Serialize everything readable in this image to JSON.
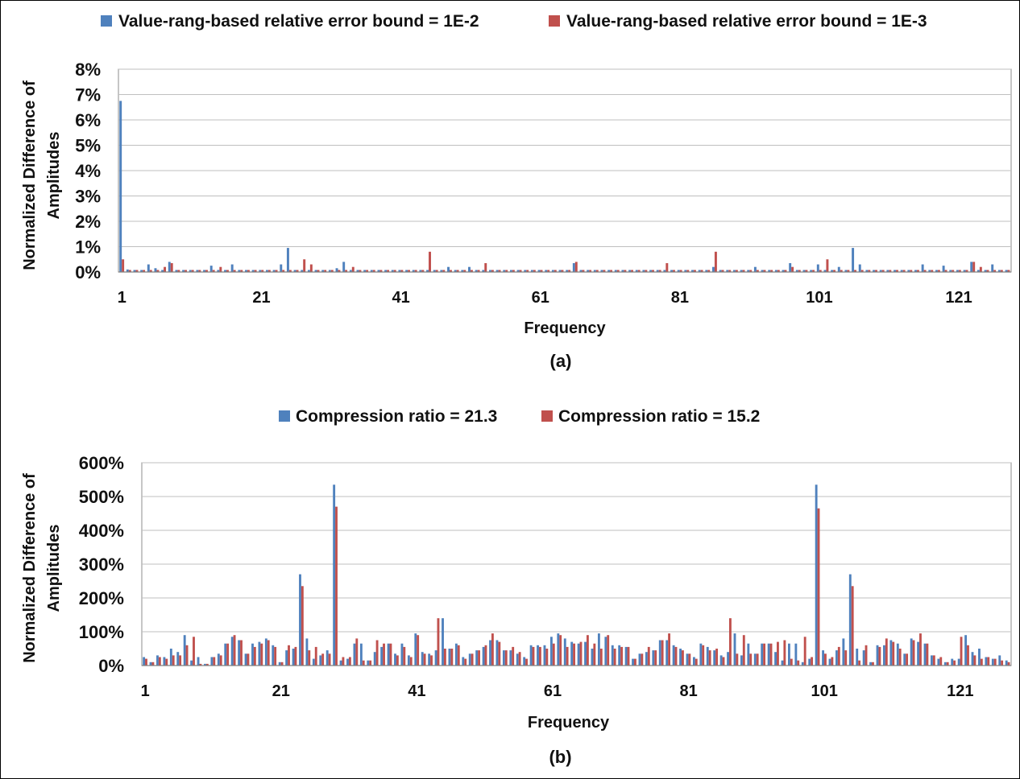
{
  "chart_data": [
    {
      "type": "bar",
      "caption": "(a)",
      "xlabel": "Frequency",
      "ylabel_line1": "Normalized Difference of",
      "ylabel_line2": "Amplitudes",
      "legend_position": "top",
      "grid": true,
      "ylim": [
        0,
        8
      ],
      "y_ticks": [
        {
          "value": 0,
          "label": "0%"
        },
        {
          "value": 1,
          "label": "1%"
        },
        {
          "value": 2,
          "label": "2%"
        },
        {
          "value": 3,
          "label": "3%"
        },
        {
          "value": 4,
          "label": "4%"
        },
        {
          "value": 5,
          "label": "5%"
        },
        {
          "value": 6,
          "label": "6%"
        },
        {
          "value": 7,
          "label": "7%"
        },
        {
          "value": 8,
          "label": "8%"
        }
      ],
      "x_ticks": [
        "1",
        "21",
        "41",
        "61",
        "81",
        "101",
        "121"
      ],
      "category_count": 128,
      "series": [
        {
          "name": "Value-rang-based relative error bound = 1E-2",
          "color": "#4F81BD",
          "sparse_values": {
            "1": 6.75,
            "2": 0.1,
            "5": 0.3,
            "6": 0.15,
            "8": 0.4,
            "14": 0.25,
            "17": 0.3,
            "24": 0.3,
            "25": 0.95,
            "32": 0.15,
            "33": 0.4,
            "48": 0.2,
            "51": 0.2,
            "66": 0.35,
            "86": 0.2,
            "92": 0.2,
            "97": 0.35,
            "101": 0.3,
            "104": 0.2,
            "106": 0.95,
            "107": 0.3,
            "116": 0.3,
            "119": 0.25,
            "123": 0.4,
            "126": 0.3
          },
          "default_value": 0.08
        },
        {
          "name": "Value-rang-based relative error bound = 1E-3",
          "color": "#C0504D",
          "sparse_values": {
            "1": 0.5,
            "7": 0.2,
            "8": 0.35,
            "15": 0.2,
            "27": 0.5,
            "28": 0.3,
            "34": 0.2,
            "45": 0.8,
            "53": 0.35,
            "66": 0.4,
            "79": 0.35,
            "86": 0.8,
            "97": 0.2,
            "102": 0.5,
            "123": 0.4,
            "124": 0.2
          },
          "default_value": 0.08
        }
      ]
    },
    {
      "type": "bar",
      "caption": "(b)",
      "xlabel": "Frequency",
      "ylabel_line1": "Normalized Difference of",
      "ylabel_line2": "Amplitudes",
      "legend_position": "top",
      "grid": true,
      "ylim": [
        0,
        600
      ],
      "y_ticks": [
        {
          "value": 0,
          "label": "0%"
        },
        {
          "value": 100,
          "label": "100%"
        },
        {
          "value": 200,
          "label": "200%"
        },
        {
          "value": 300,
          "label": "300%"
        },
        {
          "value": 400,
          "label": "400%"
        },
        {
          "value": 500,
          "label": "500%"
        },
        {
          "value": 600,
          "label": "600%"
        }
      ],
      "x_ticks": [
        "1",
        "21",
        "41",
        "61",
        "81",
        "101",
        "121"
      ],
      "category_count": 128,
      "series": [
        {
          "name": "Compression ratio = 21.3",
          "color": "#4F81BD",
          "values": [
            25,
            10,
            30,
            25,
            50,
            40,
            90,
            15,
            25,
            5,
            25,
            35,
            65,
            85,
            75,
            35,
            65,
            70,
            80,
            60,
            10,
            45,
            50,
            270,
            80,
            20,
            30,
            45,
            535,
            15,
            20,
            65,
            65,
            15,
            40,
            55,
            65,
            35,
            65,
            30,
            95,
            40,
            35,
            45,
            140,
            50,
            65,
            25,
            35,
            45,
            55,
            75,
            75,
            45,
            45,
            35,
            25,
            60,
            60,
            60,
            85,
            95,
            80,
            70,
            65,
            70,
            50,
            95,
            85,
            60,
            60,
            55,
            20,
            35,
            40,
            45,
            75,
            75,
            60,
            50,
            35,
            25,
            65,
            55,
            45,
            30,
            40,
            95,
            30,
            65,
            35,
            65,
            65,
            40,
            15,
            65,
            65,
            10,
            20,
            535,
            45,
            20,
            45,
            80,
            270,
            50,
            45,
            10,
            60,
            60,
            75,
            65,
            35,
            80,
            70,
            65,
            30,
            20,
            10,
            20,
            20,
            90,
            40,
            50,
            25,
            20,
            30,
            15
          ],
          "values_note": ""
        },
        {
          "name": "Compression ratio = 15.2",
          "color": "#C0504D",
          "values": [
            20,
            10,
            25,
            20,
            30,
            30,
            60,
            85,
            5,
            5,
            25,
            30,
            65,
            90,
            75,
            35,
            55,
            65,
            75,
            55,
            10,
            60,
            55,
            235,
            45,
            55,
            35,
            35,
            470,
            25,
            25,
            80,
            15,
            15,
            75,
            65,
            65,
            30,
            55,
            25,
            90,
            35,
            30,
            140,
            50,
            50,
            60,
            20,
            35,
            45,
            60,
            95,
            70,
            45,
            55,
            40,
            20,
            55,
            55,
            50,
            65,
            90,
            55,
            65,
            70,
            90,
            65,
            50,
            90,
            50,
            55,
            55,
            20,
            35,
            55,
            45,
            75,
            95,
            55,
            45,
            35,
            20,
            60,
            45,
            50,
            25,
            140,
            35,
            90,
            35,
            35,
            65,
            65,
            70,
            75,
            20,
            15,
            85,
            25,
            465,
            35,
            25,
            55,
            45,
            235,
            15,
            60,
            10,
            55,
            80,
            70,
            50,
            35,
            75,
            95,
            65,
            30,
            25,
            10,
            15,
            85,
            60,
            30,
            20,
            25,
            20,
            15,
            10
          ]
        }
      ]
    }
  ]
}
